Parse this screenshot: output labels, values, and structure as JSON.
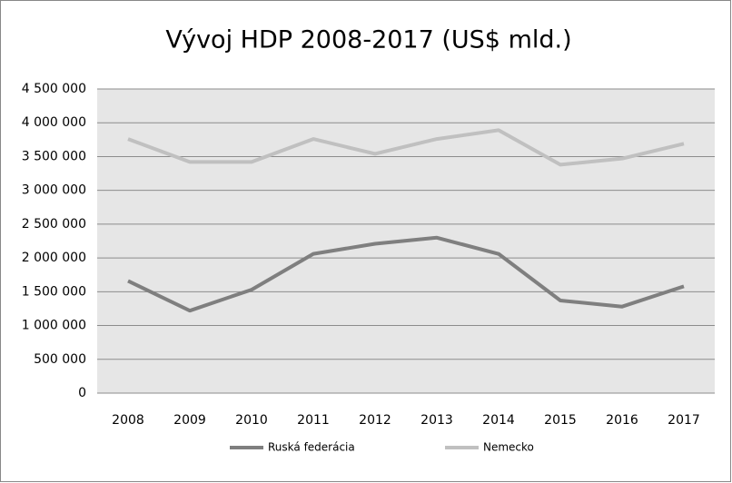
{
  "chart_data": {
    "type": "line",
    "title": "Vývoj HDP 2008-2017 (US$ mld.)",
    "categories": [
      "2008",
      "2009",
      "2010",
      "2011",
      "2012",
      "2013",
      "2014",
      "2015",
      "2016",
      "2017"
    ],
    "series": [
      {
        "name": "Ruská federácia",
        "color": "#7f7f7f",
        "values": [
          1660000,
          1220000,
          1530000,
          2060000,
          2210000,
          2300000,
          2060000,
          1370000,
          1280000,
          1580000
        ]
      },
      {
        "name": "Nemecko",
        "color": "#c0c0c0",
        "values": [
          3760000,
          3420000,
          3420000,
          3760000,
          3540000,
          3760000,
          3890000,
          3380000,
          3470000,
          3690000
        ]
      }
    ],
    "ylim": [
      0,
      4500000
    ],
    "yticks": [
      0,
      {
        "value": 500000,
        "label": "500 000"
      },
      {
        "value": 1000000,
        "label": "1 000 000"
      },
      {
        "value": 1500000,
        "label": "1 500 000"
      },
      {
        "value": 2000000,
        "label": "2 000 000"
      },
      {
        "value": 2500000,
        "label": "2 500 000"
      },
      {
        "value": 3000000,
        "label": "3 000 000"
      },
      {
        "value": 3500000,
        "label": "3 500 000"
      },
      {
        "value": 4000000,
        "label": "4 000 000"
      },
      {
        "value": 4500000,
        "label": "4 500 000"
      }
    ],
    "grid": true,
    "legend": "bottom"
  }
}
